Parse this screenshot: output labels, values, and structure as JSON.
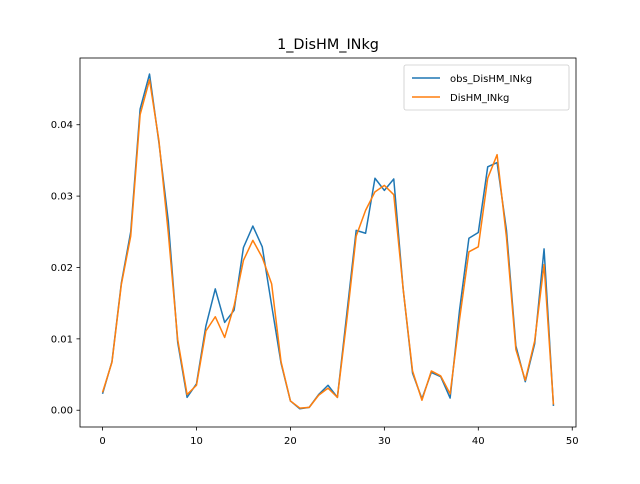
{
  "chart_data": {
    "type": "line",
    "title": "1_DisHM_INkg",
    "xlabel": "",
    "ylabel": "",
    "xlim": [
      -2.4,
      50.4
    ],
    "ylim": [
      -0.00235,
      0.04935
    ],
    "xticks": [
      0,
      10,
      20,
      30,
      40,
      50
    ],
    "xtick_labels": [
      "0",
      "10",
      "20",
      "30",
      "40",
      "50"
    ],
    "yticks": [
      0.0,
      0.01,
      0.02,
      0.03,
      0.04
    ],
    "ytick_labels": [
      "0.00",
      "0.01",
      "0.02",
      "0.03",
      "0.04"
    ],
    "grid": false,
    "legend_position": "top-right",
    "x": [
      0,
      1,
      2,
      3,
      4,
      5,
      6,
      7,
      8,
      9,
      10,
      11,
      12,
      13,
      14,
      15,
      16,
      17,
      18,
      19,
      20,
      21,
      22,
      23,
      24,
      25,
      26,
      27,
      28,
      29,
      30,
      31,
      32,
      33,
      34,
      35,
      36,
      37,
      38,
      39,
      40,
      41,
      42,
      43,
      44,
      45,
      46,
      47,
      48
    ],
    "series": [
      {
        "name": "obs_DisHM_INkg",
        "color": "#1f77b4",
        "values": [
          0.0023,
          0.0068,
          0.0178,
          0.025,
          0.0422,
          0.0471,
          0.0375,
          0.0265,
          0.0095,
          0.0018,
          0.0037,
          0.0118,
          0.017,
          0.0123,
          0.014,
          0.0228,
          0.0258,
          0.0229,
          0.0147,
          0.0066,
          0.0013,
          0.0002,
          0.0004,
          0.0022,
          0.0035,
          0.0018,
          0.0135,
          0.0252,
          0.0248,
          0.0325,
          0.0308,
          0.0324,
          0.017,
          0.0052,
          0.0016,
          0.0053,
          0.0047,
          0.0017,
          0.014,
          0.0241,
          0.0249,
          0.0341,
          0.0347,
          0.0252,
          0.009,
          0.004,
          0.0093,
          0.0226,
          0.0006
        ]
      },
      {
        "name": "DisHM_INkg",
        "color": "#ff7f0e",
        "values": [
          0.0025,
          0.0067,
          0.0176,
          0.0244,
          0.0414,
          0.0463,
          0.0378,
          0.0248,
          0.0099,
          0.0022,
          0.0035,
          0.0111,
          0.0131,
          0.0102,
          0.0146,
          0.021,
          0.0238,
          0.0214,
          0.0177,
          0.0068,
          0.0013,
          0.0003,
          0.0004,
          0.0021,
          0.0031,
          0.0018,
          0.0126,
          0.0244,
          0.028,
          0.0306,
          0.0315,
          0.0302,
          0.017,
          0.0055,
          0.0014,
          0.0055,
          0.0048,
          0.0023,
          0.0127,
          0.0222,
          0.0229,
          0.0325,
          0.0358,
          0.0242,
          0.0085,
          0.0042,
          0.0097,
          0.0204,
          0.0008
        ]
      }
    ]
  }
}
